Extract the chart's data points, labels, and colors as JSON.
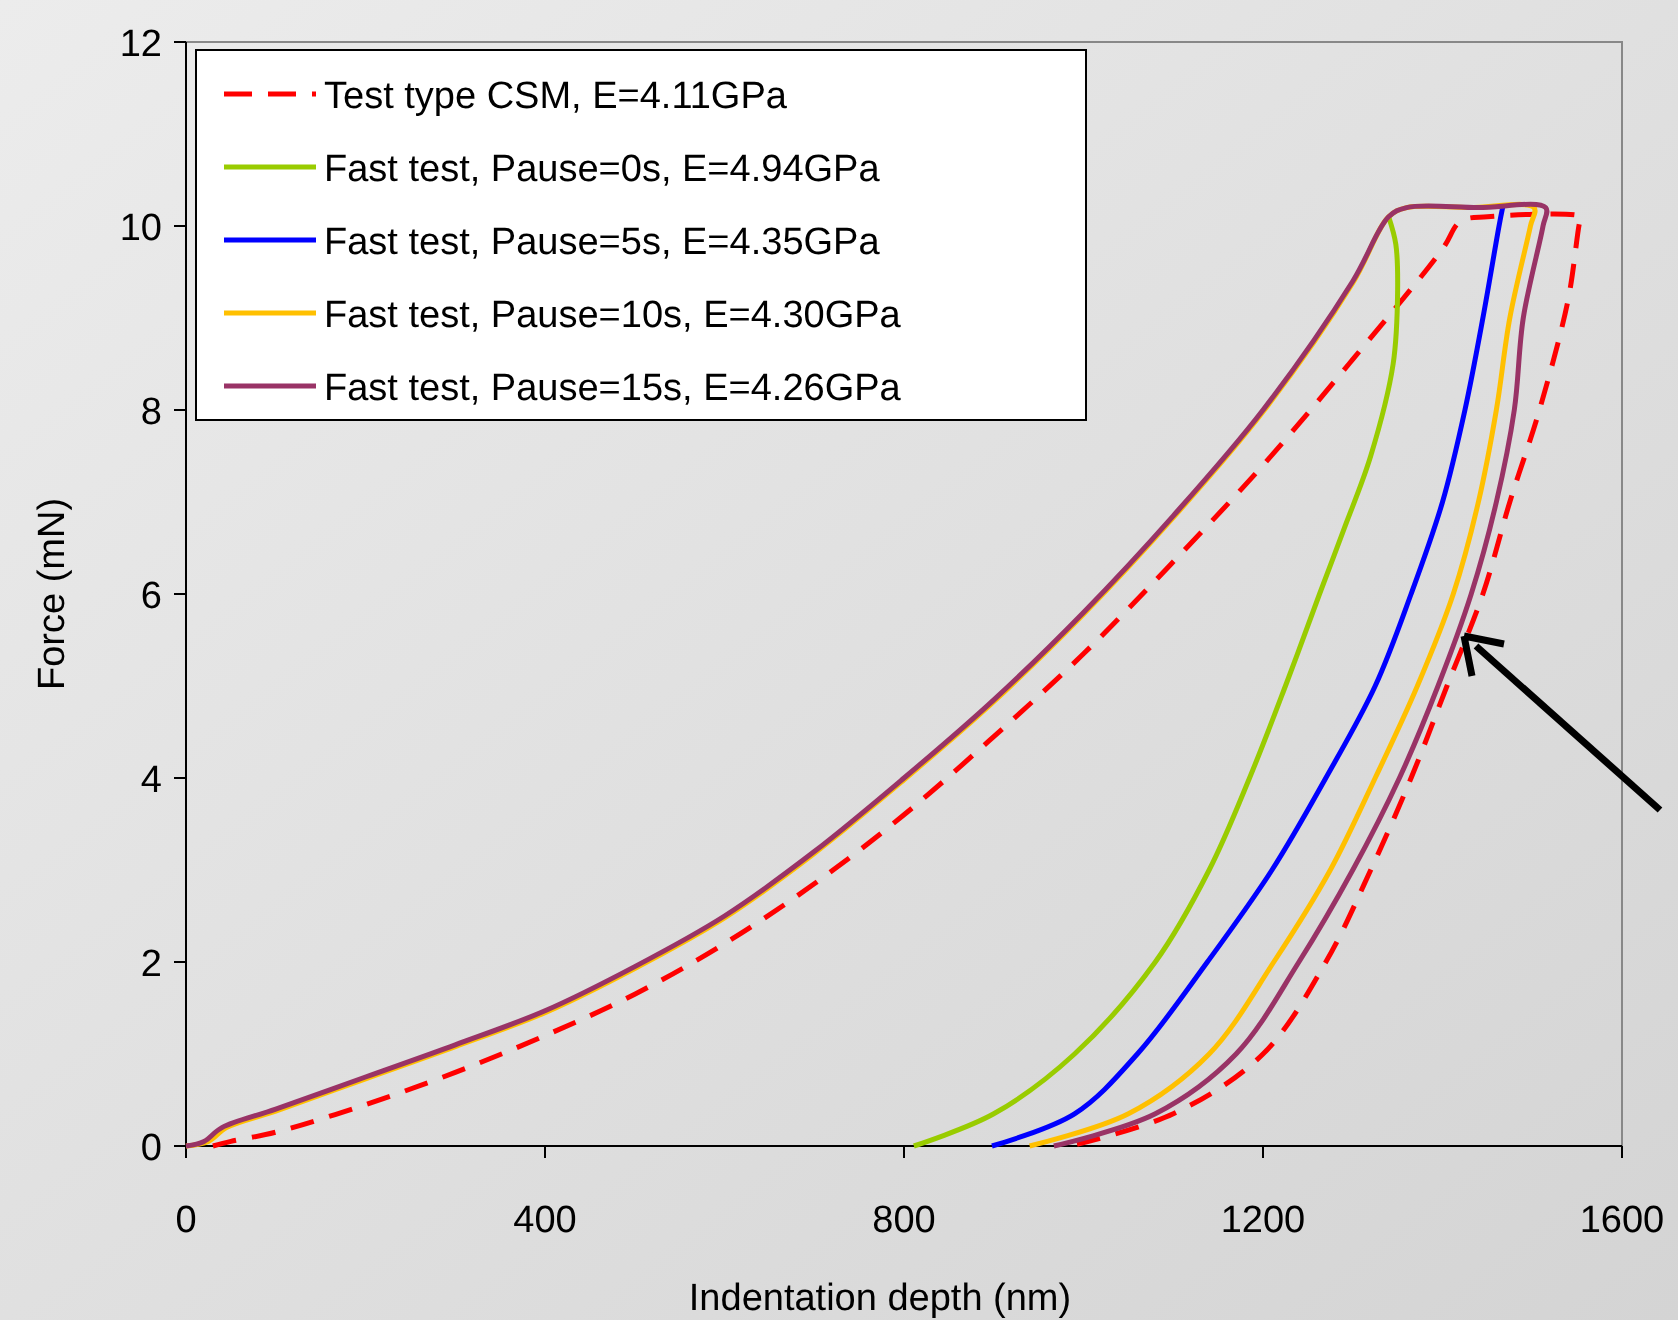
{
  "chart_data": {
    "type": "line",
    "xlabel": "Indentation depth (nm)",
    "ylabel": "Force (mN)",
    "xlim": [
      0,
      1600
    ],
    "ylim": [
      0,
      12
    ],
    "xticks": [
      0,
      400,
      800,
      1200,
      1600
    ],
    "yticks": [
      0,
      2,
      4,
      6,
      8,
      10,
      12
    ],
    "grid": false,
    "legend": "top left",
    "marker": "none",
    "series": [
      {
        "name": "Test type CSM, E=4.11GPa",
        "color": "#ff0000",
        "line_style": "dashed",
        "x": [
          30,
          50,
          100,
          200,
          300,
          400,
          500,
          600,
          700,
          800,
          900,
          1000,
          1100,
          1200,
          1300,
          1400,
          1420,
          1450,
          1555,
          1553,
          1540,
          1508,
          1475,
          1445,
          1405,
          1365,
          1320,
          1270,
          1200,
          1100,
          985
        ],
        "values": [
          0,
          0.05,
          0.15,
          0.45,
          0.8,
          1.2,
          1.65,
          2.2,
          2.85,
          3.6,
          4.45,
          5.35,
          6.35,
          7.4,
          8.55,
          9.75,
          10.05,
          10.1,
          10.1,
          10.05,
          9.2,
          8,
          7,
          6,
          5,
          4,
          3,
          2,
          1,
          0.35,
          0
        ]
      },
      {
        "name": "Fast test, Pause=0s, E=4.94GPa",
        "color": "#99cc00",
        "line_style": "solid",
        "x": [
          1340,
          1348,
          1350,
          1345,
          1320,
          1290,
          1263,
          1225,
          1185,
          1140,
          1080,
          990,
          900,
          811
        ],
        "values": [
          10.1,
          9.8,
          9.3,
          8.5,
          7.5,
          6.7,
          6,
          5,
          4,
          3,
          2,
          1,
          0.35,
          0
        ]
      },
      {
        "name": "Fast test, Pause=5s, E=4.35GPa",
        "color": "#0000ff",
        "line_style": "solid",
        "x": [
          1467,
          1463,
          1445,
          1425,
          1400,
          1365,
          1325,
          1270,
          1210,
          1138,
          1060,
          990,
          898
        ],
        "values": [
          10.2,
          10,
          9,
          8,
          7,
          6,
          5,
          4,
          3,
          2,
          1,
          0.35,
          0
        ]
      },
      {
        "name": "Fast test, Pause=10s, E=4.30GPa",
        "color": "#ffc000",
        "line_style": "solid",
        "x": [
          0,
          25,
          45,
          100,
          200,
          300,
          400,
          500,
          600,
          700,
          800,
          900,
          1000,
          1100,
          1200,
          1300,
          1340,
          1360,
          1430,
          1502,
          1498,
          1475,
          1460,
          1440,
          1412,
          1372,
          1325,
          1275,
          1212,
          1140,
          1050,
          940
        ],
        "values": [
          0,
          0.05,
          0.2,
          0.38,
          0.73,
          1.08,
          1.45,
          1.93,
          2.48,
          3.18,
          3.98,
          4.83,
          5.78,
          6.83,
          7.98,
          9.38,
          10.1,
          10.2,
          10.2,
          10.2,
          10,
          9,
          8,
          7,
          6,
          5,
          4,
          3,
          2,
          1,
          0.35,
          0
        ]
      },
      {
        "name": "Fast test, Pause=15s, E=4.26GPa",
        "color": "#993366",
        "line_style": "solid",
        "x": [
          0,
          20,
          40,
          100,
          200,
          300,
          400,
          500,
          600,
          700,
          800,
          900,
          1000,
          1100,
          1200,
          1300,
          1340,
          1360,
          1440,
          1515,
          1512,
          1490,
          1480,
          1460,
          1432,
          1395,
          1352,
          1300,
          1240,
          1170,
          1080,
          967
        ],
        "values": [
          0,
          0.05,
          0.2,
          0.4,
          0.75,
          1.1,
          1.47,
          1.95,
          2.5,
          3.2,
          4,
          4.85,
          5.8,
          6.85,
          8,
          9.4,
          10.1,
          10.2,
          10.2,
          10.2,
          10,
          9,
          8,
          7,
          6,
          5,
          4,
          3,
          2,
          1,
          0.35,
          0
        ]
      }
    ]
  }
}
